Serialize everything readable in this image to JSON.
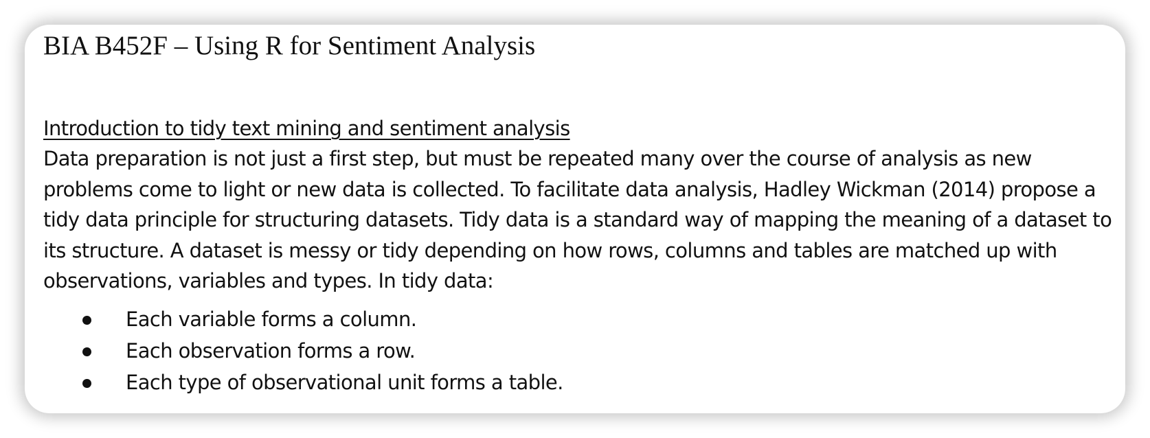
{
  "document": {
    "title": "BIA B452F – Using R for Sentiment Analysis",
    "section": {
      "heading": "Introduction to tidy text mining and sentiment analysis",
      "paragraph": "Data preparation is not just a first step, but must be repeated many over the course of analysis as new problems come to light or new data is collected. To facilitate data analysis, Hadley Wickman (2014) propose a tidy data principle for structuring datasets. Tidy data is a standard way of mapping the meaning of a dataset to its structure. A dataset is messy or tidy depending on how rows, columns and tables are matched up with observations, variables and types. In tidy data:",
      "bullets": [
        "Each variable forms a column.",
        "Each observation forms a row.",
        "Each type of observational unit forms a table."
      ]
    }
  }
}
